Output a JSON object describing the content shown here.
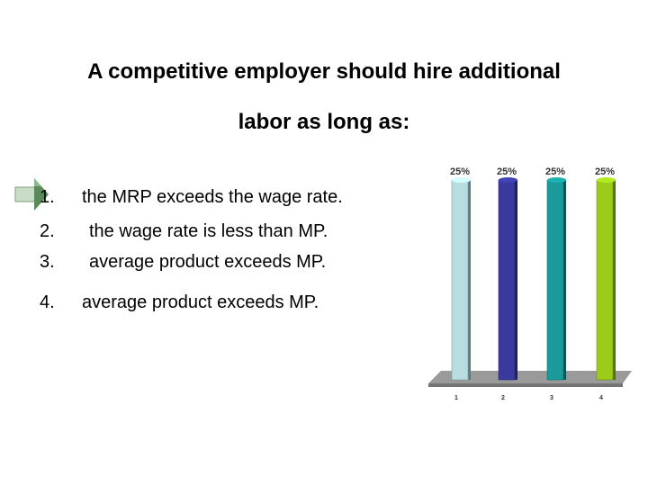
{
  "question": {
    "line1": "A competitive employer should hire additional",
    "line2": "labor as long as:"
  },
  "icons": {
    "arrow": "green-arrow-icon"
  },
  "answers": [
    {
      "number": "1.",
      "text": "the MRP exceeds the wage rate."
    },
    {
      "number": "2.",
      "text": "the wage rate is less than MP."
    },
    {
      "number": "3.",
      "text": "average product exceeds MP."
    },
    {
      "number": "4.",
      "text": "average product exceeds MP."
    }
  ],
  "chart_data": {
    "type": "bar",
    "categories": [
      "1",
      "2",
      "3",
      "4"
    ],
    "values": [
      25,
      25,
      25,
      25
    ],
    "data_labels": [
      "25%",
      "25%",
      "25%",
      "25%"
    ],
    "colors": [
      "#b8dde0",
      "#3a3a9e",
      "#1a9a9a",
      "#9bcc1a"
    ],
    "floor_color": "#9a9a9a",
    "ylim": [
      0,
      25
    ],
    "grid": false,
    "legend": "none"
  },
  "colors": {
    "arrow": "#5a8a5a",
    "arrow_light": "#c8dcc8"
  }
}
